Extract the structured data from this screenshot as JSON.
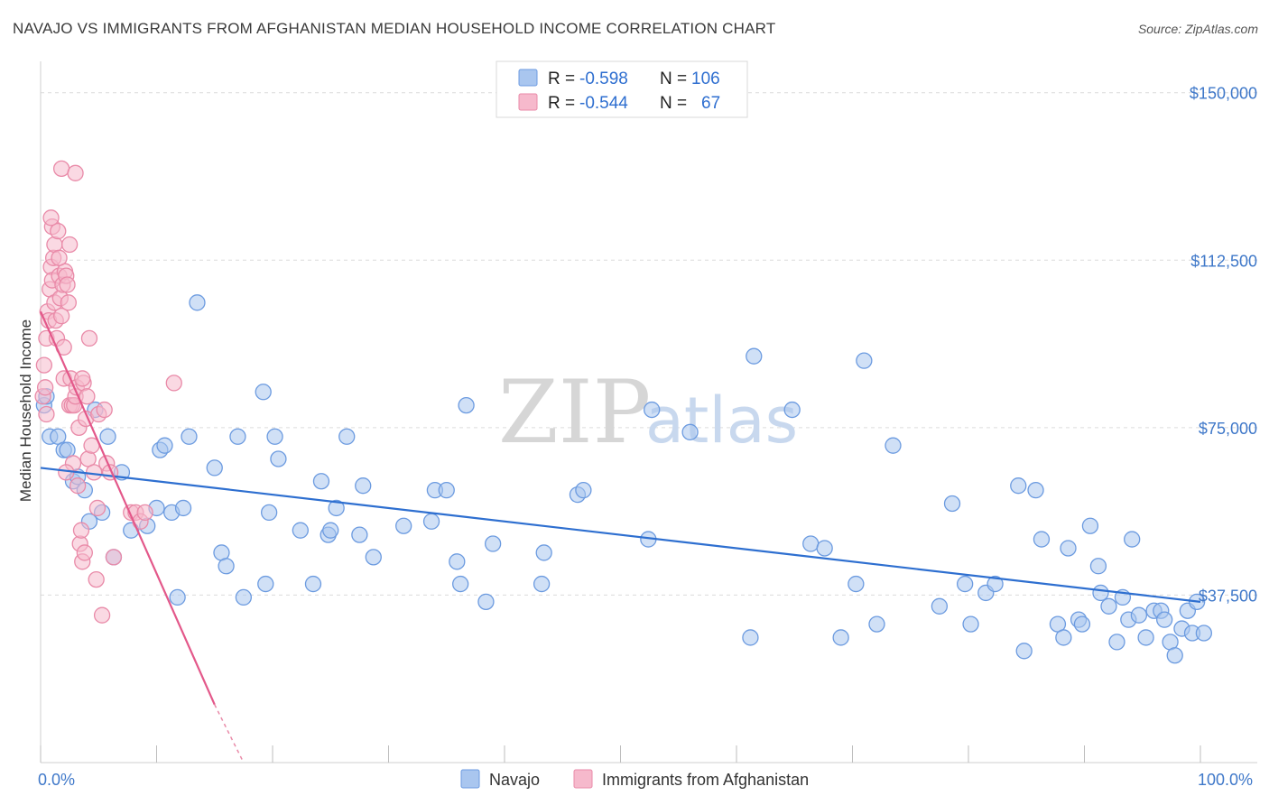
{
  "header": {
    "title": "NAVAJO VS IMMIGRANTS FROM AFGHANISTAN MEDIAN HOUSEHOLD INCOME CORRELATION CHART",
    "source": "Source: ZipAtlas.com"
  },
  "watermark": {
    "zip": "ZIP",
    "atlas": "atlas"
  },
  "legend_top": {
    "rows": [
      {
        "r_label": "R =",
        "r_value": "-0.598",
        "n_label": "N =",
        "n_value": "106",
        "color": "#a9c6ef",
        "stroke": "#6c9be0"
      },
      {
        "r_label": "R =",
        "r_value": "-0.544",
        "n_label": "N =",
        "n_value": "67",
        "color": "#f6b9cc",
        "stroke": "#e98aa8"
      }
    ]
  },
  "legend_bottom": {
    "items": [
      {
        "label": "Navajo",
        "color": "#a9c6ef",
        "stroke": "#6c9be0"
      },
      {
        "label": "Immigrants from Afghanistan",
        "color": "#f6b9cc",
        "stroke": "#e98aa8"
      }
    ]
  },
  "chart_data": {
    "type": "scatter",
    "title": "NAVAJO VS IMMIGRANTS FROM AFGHANISTAN MEDIAN HOUSEHOLD INCOME CORRELATION CHART",
    "xlabel": "",
    "ylabel": "Median Household Income",
    "xlim": [
      0,
      100
    ],
    "ylim": [
      0,
      155000
    ],
    "x_tick_labels": [
      "0.0%",
      "100.0%"
    ],
    "y_ticks": [
      37500,
      75000,
      112500,
      150000
    ],
    "y_tick_labels": [
      "$37,500",
      "$75,000",
      "$112,500",
      "$150,000"
    ],
    "grid": true,
    "series": [
      {
        "name": "Navajo",
        "color": "#6c9be0",
        "fill": "#a9c6ef",
        "trend": {
          "x0": 0,
          "y0": 66000,
          "x1": 100,
          "y1": 36000
        },
        "points": [
          [
            0.3,
            80000
          ],
          [
            0.8,
            73000
          ],
          [
            1.5,
            73000
          ],
          [
            2.0,
            70000
          ],
          [
            2.3,
            70000
          ],
          [
            2.8,
            63000
          ],
          [
            3.2,
            64000
          ],
          [
            3.8,
            61000
          ],
          [
            4.2,
            54000
          ],
          [
            5.3,
            56000
          ],
          [
            4.7,
            79000
          ],
          [
            5.8,
            73000
          ],
          [
            6.3,
            46000
          ],
          [
            7.0,
            65000
          ],
          [
            7.8,
            52000
          ],
          [
            9.2,
            53000
          ],
          [
            10.0,
            57000
          ],
          [
            10.3,
            70000
          ],
          [
            10.7,
            71000
          ],
          [
            11.3,
            56000
          ],
          [
            11.8,
            37000
          ],
          [
            12.3,
            57000
          ],
          [
            12.8,
            73000
          ],
          [
            13.5,
            103000
          ],
          [
            15.0,
            66000
          ],
          [
            15.6,
            47000
          ],
          [
            16.0,
            44000
          ],
          [
            17.0,
            73000
          ],
          [
            17.5,
            37000
          ],
          [
            19.2,
            83000
          ],
          [
            19.4,
            40000
          ],
          [
            19.7,
            56000
          ],
          [
            20.2,
            73000
          ],
          [
            20.5,
            68000
          ],
          [
            22.4,
            52000
          ],
          [
            23.5,
            40000
          ],
          [
            24.2,
            63000
          ],
          [
            24.8,
            51000
          ],
          [
            25.0,
            52000
          ],
          [
            25.5,
            57000
          ],
          [
            26.4,
            73000
          ],
          [
            27.5,
            51000
          ],
          [
            27.8,
            62000
          ],
          [
            28.7,
            46000
          ],
          [
            31.3,
            53000
          ],
          [
            33.7,
            54000
          ],
          [
            34.0,
            61000
          ],
          [
            35.0,
            61000
          ],
          [
            35.9,
            45000
          ],
          [
            36.2,
            40000
          ],
          [
            36.7,
            80000
          ],
          [
            38.4,
            36000
          ],
          [
            39.0,
            49000
          ],
          [
            43.2,
            40000
          ],
          [
            43.4,
            47000
          ],
          [
            46.3,
            60000
          ],
          [
            46.8,
            61000
          ],
          [
            52.4,
            50000
          ],
          [
            52.7,
            79000
          ],
          [
            56.0,
            74000
          ],
          [
            61.2,
            28000
          ],
          [
            61.5,
            91000
          ],
          [
            64.8,
            79000
          ],
          [
            66.4,
            49000
          ],
          [
            67.6,
            48000
          ],
          [
            69.0,
            28000
          ],
          [
            70.3,
            40000
          ],
          [
            71.0,
            90000
          ],
          [
            72.1,
            31000
          ],
          [
            73.5,
            71000
          ],
          [
            77.5,
            35000
          ],
          [
            78.6,
            58000
          ],
          [
            79.7,
            40000
          ],
          [
            80.2,
            31000
          ],
          [
            81.5,
            38000
          ],
          [
            82.3,
            40000
          ],
          [
            84.3,
            62000
          ],
          [
            84.8,
            25000
          ],
          [
            85.8,
            61000
          ],
          [
            86.3,
            50000
          ],
          [
            87.7,
            31000
          ],
          [
            88.2,
            28000
          ],
          [
            88.6,
            48000
          ],
          [
            89.5,
            32000
          ],
          [
            89.8,
            31000
          ],
          [
            90.5,
            53000
          ],
          [
            91.2,
            44000
          ],
          [
            91.4,
            38000
          ],
          [
            92.1,
            35000
          ],
          [
            92.8,
            27000
          ],
          [
            93.3,
            37000
          ],
          [
            93.8,
            32000
          ],
          [
            94.1,
            50000
          ],
          [
            94.7,
            33000
          ],
          [
            95.3,
            28000
          ],
          [
            96.0,
            34000
          ],
          [
            96.6,
            34000
          ],
          [
            96.9,
            32000
          ],
          [
            97.4,
            27000
          ],
          [
            97.8,
            24000
          ],
          [
            98.4,
            30000
          ],
          [
            98.9,
            34000
          ],
          [
            99.3,
            29000
          ],
          [
            99.7,
            36000
          ],
          [
            100.3,
            29000
          ],
          [
            0.5,
            82000
          ]
        ]
      },
      {
        "name": "Immigrants from Afghanistan",
        "color": "#e98aa8",
        "fill": "#f6b9cc",
        "trend": {
          "x0": 0,
          "y0": 101000,
          "x1": 15,
          "y1": 13000
        },
        "trend_dashed_to": {
          "x": 17.5,
          "y": -2000
        },
        "points": [
          [
            0.2,
            82000
          ],
          [
            0.3,
            89000
          ],
          [
            0.4,
            84000
          ],
          [
            0.5,
            95000
          ],
          [
            0.6,
            101000
          ],
          [
            0.7,
            99000
          ],
          [
            0.8,
            106000
          ],
          [
            0.9,
            111000
          ],
          [
            1.0,
            108000
          ],
          [
            1.0,
            120000
          ],
          [
            1.1,
            113000
          ],
          [
            1.2,
            116000
          ],
          [
            1.2,
            103000
          ],
          [
            1.3,
            99000
          ],
          [
            1.4,
            95000
          ],
          [
            1.5,
            119000
          ],
          [
            1.6,
            109000
          ],
          [
            1.7,
            104000
          ],
          [
            1.8,
            100000
          ],
          [
            1.9,
            107000
          ],
          [
            2.0,
            93000
          ],
          [
            2.0,
            86000
          ],
          [
            2.1,
            110000
          ],
          [
            2.2,
            109000
          ],
          [
            2.3,
            107000
          ],
          [
            2.4,
            103000
          ],
          [
            2.5,
            116000
          ],
          [
            2.5,
            80000
          ],
          [
            2.6,
            86000
          ],
          [
            2.7,
            80000
          ],
          [
            2.8,
            67000
          ],
          [
            2.9,
            80000
          ],
          [
            3.0,
            82000
          ],
          [
            3.1,
            84000
          ],
          [
            3.2,
            62000
          ],
          [
            3.3,
            75000
          ],
          [
            3.4,
            49000
          ],
          [
            3.5,
            52000
          ],
          [
            3.6,
            45000
          ],
          [
            3.7,
            85000
          ],
          [
            3.8,
            47000
          ],
          [
            3.9,
            77000
          ],
          [
            4.0,
            82000
          ],
          [
            4.1,
            68000
          ],
          [
            4.2,
            95000
          ],
          [
            4.4,
            71000
          ],
          [
            4.6,
            65000
          ],
          [
            4.8,
            41000
          ],
          [
            4.9,
            57000
          ],
          [
            5.0,
            78000
          ],
          [
            5.3,
            33000
          ],
          [
            5.5,
            79000
          ],
          [
            5.7,
            67000
          ],
          [
            6.0,
            65000
          ],
          [
            6.3,
            46000
          ],
          [
            7.8,
            56000
          ],
          [
            8.2,
            56000
          ],
          [
            8.6,
            54000
          ],
          [
            9.0,
            56000
          ],
          [
            11.5,
            85000
          ],
          [
            1.8,
            133000
          ],
          [
            3.0,
            132000
          ],
          [
            0.9,
            122000
          ],
          [
            1.6,
            113000
          ],
          [
            0.5,
            78000
          ],
          [
            3.6,
            86000
          ],
          [
            2.2,
            65000
          ]
        ]
      }
    ]
  },
  "axes": {
    "x_left_label": "0.0%",
    "x_right_label": "100.0%",
    "y_label": "Median Household Income"
  }
}
